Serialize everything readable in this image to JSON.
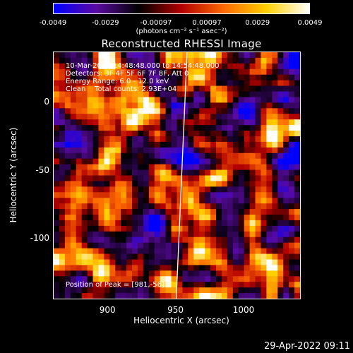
{
  "colorbar": {
    "ticks": [
      "-0.0049",
      "-0.0029",
      "-0.00097",
      "0.00097",
      "0.0029",
      "0.0049"
    ],
    "tick_values": [
      -0.0049,
      -0.0029,
      -0.00097,
      0.00097,
      0.0029,
      0.0049
    ],
    "units": "(photons cm⁻² s⁻¹ asec⁻²)",
    "colors": [
      "#0000ff",
      "#5a0aa0",
      "#000000",
      "#b40000",
      "#ff6a00",
      "#ffd000",
      "#ffffff"
    ]
  },
  "title": "Reconstructed RHESSI Image",
  "info": {
    "time": "10-Mar-2004 14:48:48.000 to 14:54:48.000",
    "detectors": "Detectors: 3F 4F 5F 6F 7F 8F, Att 0",
    "energy": "Energy Range: 6.0 - 12.0 keV",
    "clean": "Clean    Total counts: 2.93E+04",
    "peak": "Position of Peak = [981,-56]"
  },
  "axes": {
    "xlabel": "Heliocentric X (arcsec)",
    "ylabel": "Heliocentric Y (arcsec)",
    "xticks": [
      "900",
      "950",
      "1000"
    ],
    "xtick_values": [
      900,
      950,
      1000
    ],
    "yticks": [
      "0",
      "-50",
      "-100"
    ],
    "ytick_values": [
      0,
      -50,
      -100
    ],
    "xlim": [
      860,
      1042
    ],
    "ylim": [
      -145,
      37
    ]
  },
  "chart_data": {
    "type": "heatmap",
    "title": "Reconstructed RHESSI Image",
    "xlabel": "Heliocentric X (arcsec)",
    "ylabel": "Heliocentric Y (arcsec)",
    "xlim": [
      860,
      1042
    ],
    "ylim": [
      -145,
      37
    ],
    "zlim": [
      -0.0049,
      0.0049
    ],
    "peak": [
      981,
      -56
    ],
    "limb_line": [
      [
        958,
        37
      ],
      [
        950,
        -145
      ]
    ]
  },
  "datestamp": "29-Apr-2022 09:11"
}
